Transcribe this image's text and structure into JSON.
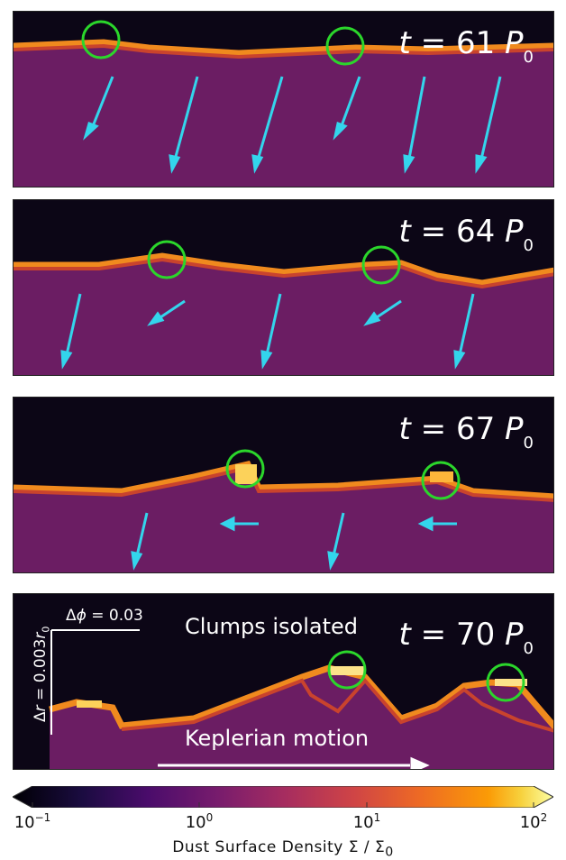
{
  "panels": [
    {
      "id": "t61",
      "time_label": {
        "t": "t",
        "eq": "= 61",
        "P": "P",
        "sub": "0"
      }
    },
    {
      "id": "t64",
      "time_label": {
        "t": "t",
        "eq": "= 64",
        "P": "P",
        "sub": "0"
      }
    },
    {
      "id": "t67",
      "time_label": {
        "t": "t",
        "eq": "= 67",
        "P": "P",
        "sub": "0"
      }
    },
    {
      "id": "t70",
      "time_label": {
        "t": "t",
        "eq": "= 70",
        "P": "P",
        "sub": "0"
      },
      "annotations": {
        "clumps": "Clumps isolated",
        "motion": "Keplerian motion",
        "dphi_symbol": "Δ",
        "dphi_var": "ϕ",
        "dphi_value": " = 0.03",
        "dr_symbol": "Δ",
        "dr_var": "r",
        "dr_value": " = 0.003",
        "dr_r": "r",
        "dr_sub": "0"
      }
    }
  ],
  "colorbar": {
    "colormap": "inferno",
    "scale": "log",
    "range": [
      0.1,
      100
    ],
    "ticks": [
      {
        "base": "10",
        "exp": "−1"
      },
      {
        "base": "10",
        "exp": "0"
      },
      {
        "base": "10",
        "exp": "1"
      },
      {
        "base": "10",
        "exp": "2"
      }
    ],
    "label": "Dust Surface Density Σ / Σ",
    "label_sub": "0"
  },
  "colors": {
    "clump_circle": "#2bd62b",
    "velocity_arrow": "#33d5ec",
    "annotation": "#ffffff"
  }
}
